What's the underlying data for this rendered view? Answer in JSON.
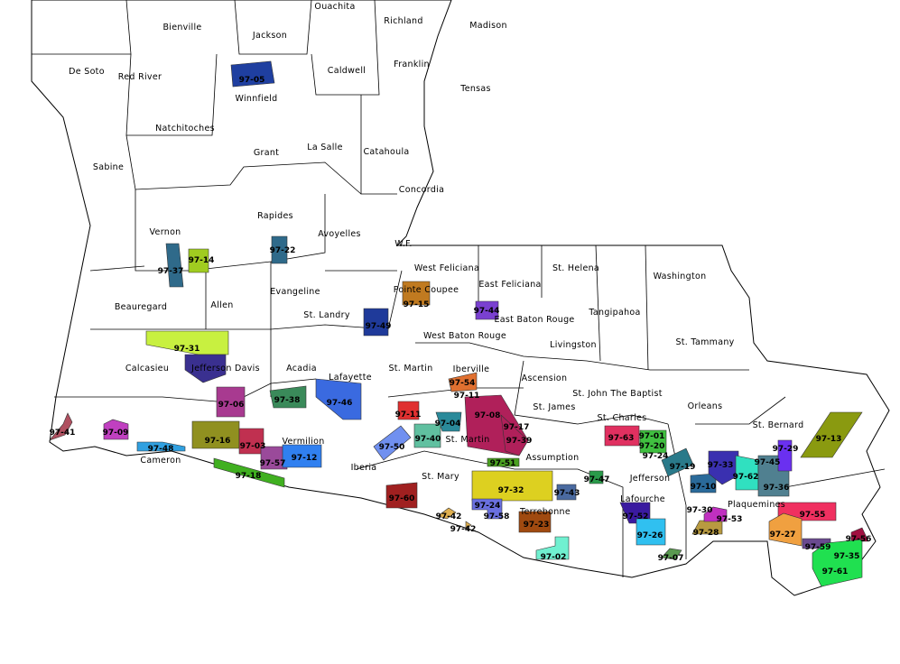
{
  "map": {
    "parishes": [
      "Ouachita",
      "Bienville",
      "Jackson",
      "Richland",
      "Madison",
      "Caldwell",
      "Franklin",
      "De Soto",
      "Red River",
      "Winnfield",
      "Tensas",
      "Natchitoches",
      "La Salle",
      "Catahoula",
      "Grant",
      "Sabine",
      "Concordia",
      "Rapides",
      "Vernon",
      "Avoyelles",
      "W.F.",
      "West Feliciana",
      "East Feliciana",
      "St. Helena",
      "Washington",
      "Pointe Coupee",
      "Evangeline",
      "Beauregard",
      "Allen",
      "Tangipahoa",
      "East Baton Rouge",
      "St. Landry",
      "West Baton Rouge",
      "Livingston",
      "St. Tammany",
      "Calcasieu",
      "Jefferson Davis",
      "Acadia",
      "Lafayette",
      "St. Martin",
      "Iberville",
      "Ascension",
      "St. John The Baptist",
      "St. James",
      "Orleans",
      "St. Charles",
      "St. Bernard",
      "St. Martin",
      "Assumption",
      "Vermilion",
      "Cameron",
      "Iberia",
      "Jefferson",
      "St. Mary",
      "Lafourche",
      "Terrebonne",
      "Plaquemines"
    ],
    "projects": [
      {
        "label": "97-05",
        "color": "#1f3fa0"
      },
      {
        "label": "97-14",
        "color": "#a0cc20"
      },
      {
        "label": "97-37",
        "color": "#2f6a8a"
      },
      {
        "label": "97-22",
        "color": "#2f6a8a"
      },
      {
        "label": "97-15",
        "color": "#c07a20"
      },
      {
        "label": "97-44",
        "color": "#7a40d0"
      },
      {
        "label": "97-49",
        "color": "#1f3a9a"
      },
      {
        "label": "97-31",
        "color": "#c8f040"
      },
      {
        "label": "",
        "color": "#3a3090"
      },
      {
        "label": "97-06",
        "color": "#a83a90"
      },
      {
        "label": "97-38",
        "color": "#3a8a5a"
      },
      {
        "label": "97-46",
        "color": "#3a6ae0"
      },
      {
        "label": "97-54",
        "color": "#e07030"
      },
      {
        "label": "97-11",
        "color": "#e03030"
      },
      {
        "label": "97-04",
        "color": "#2a8a9a"
      },
      {
        "label": "97-40",
        "color": "#60c0a0"
      },
      {
        "label": "97-50",
        "color": "#7090f0"
      },
      {
        "label": "97-08",
        "color": "#b0205a"
      },
      {
        "label": "97-17",
        "color": "#b0205a"
      },
      {
        "label": "97-51",
        "color": "#4aa020"
      },
      {
        "label": "97-32",
        "color": "#ddd020"
      },
      {
        "label": "97-43",
        "color": "#4a6aa0"
      },
      {
        "label": "97-58",
        "color": "#6a70e0"
      },
      {
        "label": "97-60",
        "color": "#a02020"
      },
      {
        "label": "97-42",
        "color": "#e0b050"
      },
      {
        "label": "97-42",
        "color": "#e0b050"
      },
      {
        "label": "97-23",
        "color": "#a04a10"
      },
      {
        "label": "97-02",
        "color": "#70f0d0"
      },
      {
        "label": "97-47",
        "color": "#2a9a4a"
      },
      {
        "label": "97-63",
        "color": "#e03060"
      },
      {
        "label": "97-20",
        "color": "#40c040"
      },
      {
        "label": "97-19",
        "color": "#2a7a8a"
      },
      {
        "label": "97-10",
        "color": "#2a6a9a"
      },
      {
        "label": "97-33",
        "color": "#3a30b0"
      },
      {
        "label": "97-62",
        "color": "#30e0c0"
      },
      {
        "label": "97-36",
        "color": "#508090"
      },
      {
        "label": "97-29",
        "color": "#6a30f0"
      },
      {
        "label": "97-13",
        "color": "#8a9a10"
      },
      {
        "label": "97-52",
        "color": "#3a1aa0"
      },
      {
        "label": "97-26",
        "color": "#30c0f0"
      },
      {
        "label": "97-07",
        "color": "#5a9a50"
      },
      {
        "label": "97-28",
        "color": "#b89a40"
      },
      {
        "label": "97-53",
        "color": "#c030c0"
      },
      {
        "label": "97-55",
        "color": "#f03060"
      },
      {
        "label": "97-27",
        "color": "#f0a040"
      },
      {
        "label": "97-59",
        "color": "#6a4a90"
      },
      {
        "label": "97-56",
        "color": "#a01040"
      },
      {
        "label": "97-35",
        "color": "#20e050"
      },
      {
        "label": "97-41",
        "color": "#b05060"
      },
      {
        "label": "97-09",
        "color": "#c040c0"
      },
      {
        "label": "97-48",
        "color": "#30a0e0"
      },
      {
        "label": "97-16",
        "color": "#909020"
      },
      {
        "label": "97-03",
        "color": "#c03050"
      },
      {
        "label": "97-57",
        "color": "#9a4a9a"
      },
      {
        "label": "97-12",
        "color": "#3080f0"
      },
      {
        "label": "97-18",
        "color": "#40b020"
      }
    ],
    "extra_labels": [
      "97-11",
      "97-39",
      "97-01",
      "97-24",
      "97-30",
      "97-45",
      "97-61",
      "97-24"
    ]
  }
}
